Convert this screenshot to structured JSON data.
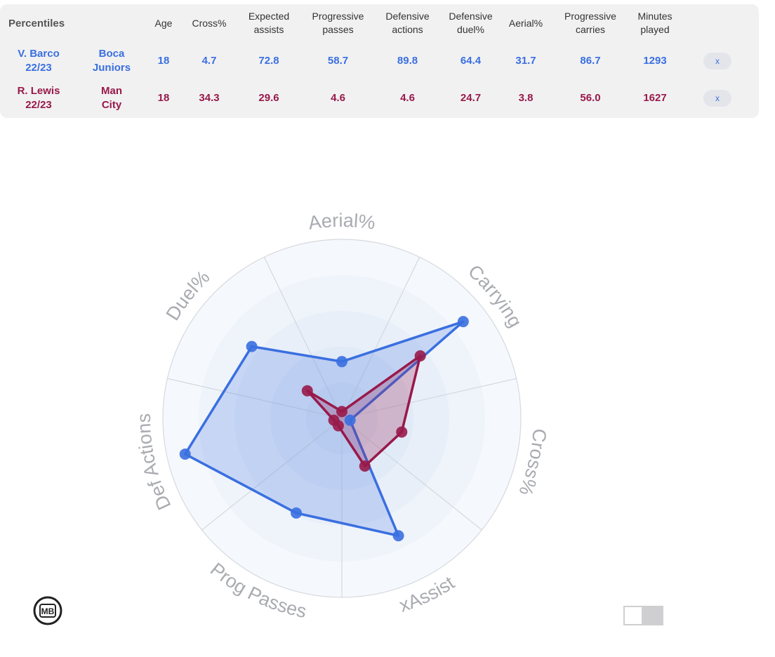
{
  "table": {
    "header": {
      "label": "Percentiles",
      "columns": [
        [
          "Age"
        ],
        [
          "Cross%"
        ],
        [
          "Expected",
          "assists"
        ],
        [
          "Progressive",
          "passes"
        ],
        [
          "Defensive",
          "actions"
        ],
        [
          "Defensive",
          "duel%"
        ],
        [
          "Aerial%"
        ],
        [
          "Progressive",
          "carries"
        ],
        [
          "Minutes",
          "played"
        ]
      ]
    },
    "rows": [
      {
        "player": [
          "V. Barco",
          "22/23"
        ],
        "club": [
          "Boca",
          "Juniors"
        ],
        "values": [
          "18",
          "4.7",
          "72.8",
          "58.7",
          "89.8",
          "64.4",
          "31.7",
          "86.7",
          "1293"
        ],
        "remove_label": "x"
      },
      {
        "player": [
          "R. Lewis",
          "22/23"
        ],
        "club": [
          "Man",
          "City"
        ],
        "values": [
          "18",
          "34.3",
          "29.6",
          "4.6",
          "4.6",
          "24.7",
          "3.8",
          "56.0",
          "1627"
        ],
        "remove_label": "x"
      }
    ]
  },
  "colors": {
    "player1": "#3a6fe0",
    "player2": "#98194a"
  },
  "chart_data": {
    "type": "radar",
    "axes": [
      "Aerial%",
      "Carrying",
      "Cross%",
      "xAssist",
      "Prog Passes",
      "Def Actions",
      "Duel%"
    ],
    "range": [
      0,
      100
    ],
    "series": [
      {
        "name": "V. Barco",
        "color": "#3a6fe0",
        "values": [
          31.7,
          86.7,
          4.7,
          72.8,
          58.7,
          89.8,
          64.4
        ]
      },
      {
        "name": "R. Lewis",
        "color": "#98194a",
        "values": [
          3.8,
          56.0,
          34.3,
          29.6,
          4.6,
          4.6,
          24.7
        ]
      }
    ]
  },
  "logo": {
    "text": "MB"
  }
}
